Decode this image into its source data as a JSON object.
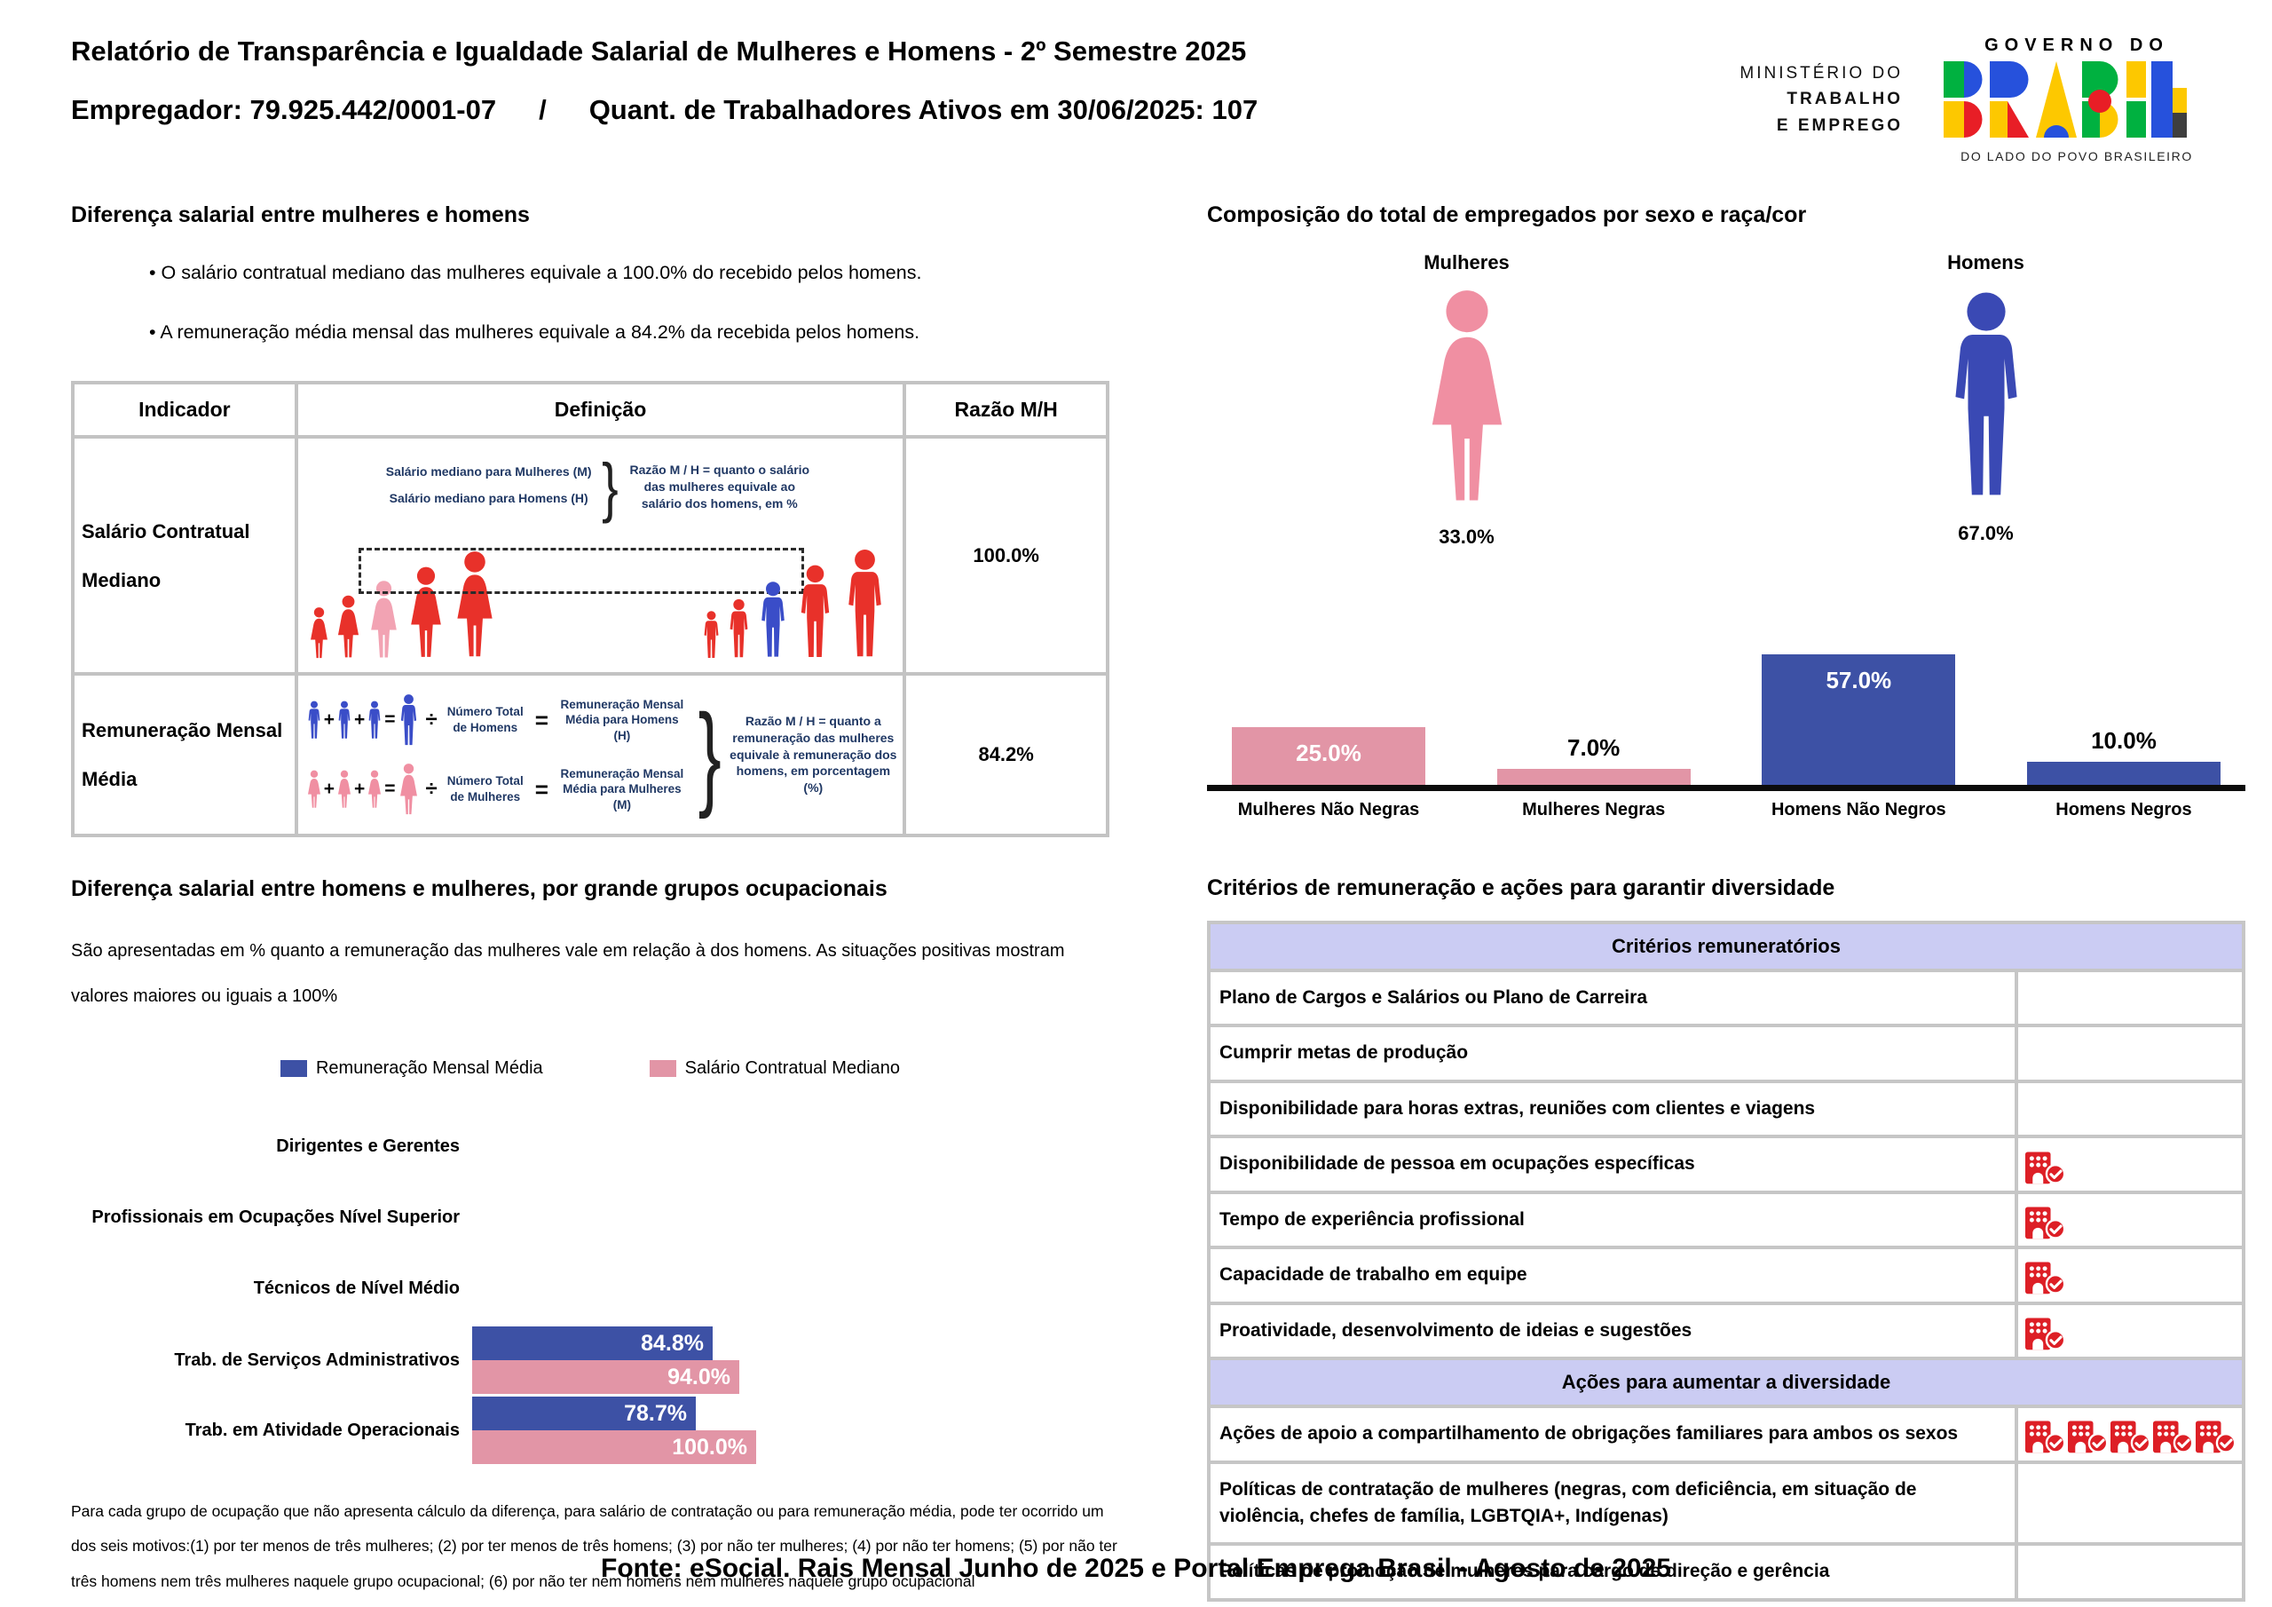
{
  "colors": {
    "pink": "#e295a6",
    "blue": "#3d51a5",
    "icon_pink": "#f08fa2",
    "icon_blue": "#3a49b4",
    "crowd_red": "#e8312a",
    "crowd_pink": "#f2a3b3",
    "crowd_blue": "#3a4dc8",
    "lavender": "#cbccf3",
    "icon_red": "#dd1f26"
  },
  "header": {
    "title_line1": "Relatório de Transparência e Igualdade Salarial de Mulheres e Homens - 2º Semestre 2025",
    "employer": "Empregador: 79.925.442/0001-07",
    "separator": "/",
    "workers": "Quant. de Trabalhadores Ativos em 30/06/2025: 107",
    "ministry_line1": "MINISTÉRIO DO",
    "ministry_line2": "TRABALHO",
    "ministry_line3": "E EMPREGO",
    "gov_top": "GOVERNO DO",
    "gov_word": "BRASIL",
    "gov_bottom": "DO LADO DO POVO BRASILEIRO"
  },
  "salary_diff": {
    "title": "Diferença salarial entre mulheres e homens",
    "bullets": [
      "• O salário contratual mediano das mulheres equivale a 100.0% do recebido pelos homens.",
      "• A remuneração média mensal das mulheres equivale a 84.2% da recebida pelos homens."
    ],
    "table": {
      "headers": [
        "Indicador",
        "Definição",
        "Razão M/H"
      ],
      "row1_indicator": "Salário Contratual Mediano",
      "row1_ratio": "100.0%",
      "row2_indicator": "Remuneração Mensal Média",
      "row2_ratio": "84.2%"
    },
    "median_diagram": {
      "label_women": "Salário mediano para Mulheres (M)",
      "label_men": "Salário mediano para Homens (H)",
      "ratio_note": "Razão M / H = quanto o salário das mulheres equivale ao salário dos homens, em %"
    },
    "mean_diagram": {
      "plus": "+",
      "equals": "=",
      "divide": "÷",
      "brace": "}",
      "num_homens": "Número Total de Homens",
      "rem_homens": "Remuneração Mensal Média para Homens (H)",
      "num_mulheres": "Número Total de Mulheres",
      "rem_mulheres": "Remuneração Mensal Média para Mulheres (M)",
      "ratio_note": "Razão M / H = quanto a remuneração das mulheres equivale à remuneração dos homens, em porcentagem (%)"
    }
  },
  "composition": {
    "title": "Composição do total de empregados por sexo e raça/cor",
    "women_label": "Mulheres",
    "men_label": "Homens",
    "women_pct": "33.0%",
    "men_pct": "67.0%",
    "chart_data": {
      "type": "bar",
      "categories": [
        "Mulheres Não Negras",
        "Mulheres Negras",
        "Homens Não Negros",
        "Homens Negros"
      ],
      "values": [
        25.0,
        7.0,
        57.0,
        10.0
      ],
      "value_labels": [
        "25.0%",
        "7.0%",
        "57.0%",
        "10.0%"
      ],
      "colors": [
        "#e295a6",
        "#e295a6",
        "#3d51a5",
        "#3d51a5"
      ],
      "ylim": [
        0,
        60
      ],
      "grid": false
    }
  },
  "occupational": {
    "title": "Diferença salarial entre homens e mulheres, por grande grupos ocupacionais",
    "subtitle": "São apresentadas em % quanto a remuneração das mulheres vale em relação à dos homens. As situações positivas mostram valores maiores ou iguais a 100%",
    "chart_data": {
      "type": "bar",
      "orientation": "horizontal",
      "categories": [
        "Dirigentes e Gerentes",
        "Profissionais em Ocupações Nível Superior",
        "Técnicos de Nível Médio",
        "Trab. de Serviços Administrativos",
        "Trab. em Atividade Operacionais"
      ],
      "series": [
        {
          "name": "Remuneração Mensal Média",
          "color": "#3d51a5",
          "values": [
            null,
            null,
            null,
            84.8,
            78.7
          ],
          "value_labels": [
            null,
            null,
            null,
            "84.8%",
            "78.7%"
          ]
        },
        {
          "name": "Salário Contratual Mediano",
          "color": "#e295a6",
          "values": [
            null,
            null,
            null,
            94.0,
            100.0
          ],
          "value_labels": [
            null,
            null,
            null,
            "94.0%",
            "100.0%"
          ]
        }
      ],
      "xlim": [
        0,
        100
      ],
      "legend_position": "top"
    },
    "footnote": "Para cada grupo de ocupação que não apresenta cálculo da diferença, para salário de contratação ou para remuneração média, pode ter ocorrido um dos seis motivos:(1) por ter menos de três mulheres; (2) por ter menos de três homens; (3) por não ter mulheres; (4) por não ter homens; (5) por não ter três homens nem três mulheres naquele grupo ocupacional; (6) por não ter nem homens nem mulheres naquele grupo ocupacional"
  },
  "criteria": {
    "title": "Critérios de remuneração e ações para garantir diversidade",
    "sections": [
      {
        "header": "Critérios remuneratórios",
        "rows": [
          {
            "label": "Plano de Cargos e Salários ou Plano de Carreira",
            "icons": 0
          },
          {
            "label": "Cumprir metas de produção",
            "icons": 0
          },
          {
            "label": "Disponibilidade para horas extras, reuniões com clientes e viagens",
            "icons": 0
          },
          {
            "label": "Disponibilidade de pessoa em ocupações específicas",
            "icons": 1
          },
          {
            "label": "Tempo de experiência profissional",
            "icons": 1
          },
          {
            "label": "Capacidade de trabalho em equipe",
            "icons": 1
          },
          {
            "label": "Proatividade, desenvolvimento de ideias e sugestões",
            "icons": 1
          }
        ]
      },
      {
        "header": "Ações para aumentar a diversidade",
        "rows": [
          {
            "label": "Ações de apoio a compartilhamento de obrigações familiares para ambos os sexos",
            "icons": 5
          },
          {
            "label": "Políticas de contratação de mulheres (negras, com deficiência, em situação de violência, chefes de família, LGBTQIA+, Indígenas)",
            "icons": 0
          },
          {
            "label": "Políticas de promoção de mulheres para cargo de direção e gerência",
            "icons": 0
          }
        ]
      }
    ]
  },
  "footer": {
    "source": "Fonte: eSocial. Rais Mensal Junho de 2025 e Portal Emprega Brasil - Agosto de 2025"
  }
}
